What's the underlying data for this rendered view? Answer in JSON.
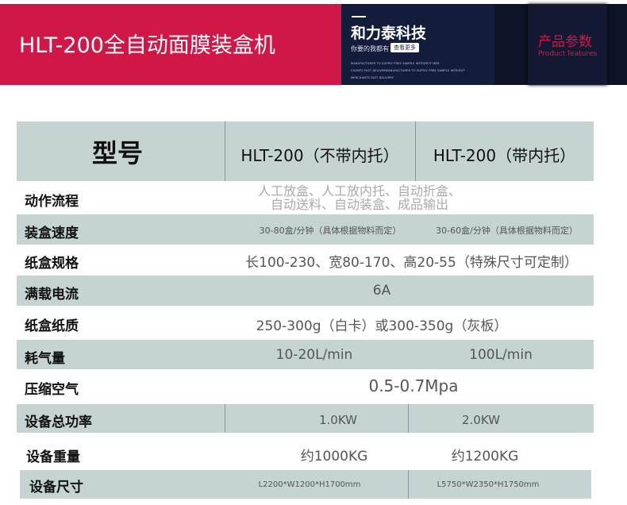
{
  "banner": {
    "title": "HLT-200全自动面膜装盒机",
    "brand": "和力泰科技",
    "slogan": "你要的我都有",
    "more_button": "查看更多",
    "tiny_lines": [
      "MANUFACTURER TO SUPPLY FREE SAMPLE INTEGRITY MER",
      "CHANTS FAST DELIVERMANUFACTURER TO SUPPLY FREE SAMPLE INTEGRIT",
      "MERCHANTS FAST DELIVERY"
    ],
    "section_cn": "产品参数",
    "section_en": "Product features",
    "accent": "#d01848"
  },
  "table": {
    "header": {
      "label": "型号",
      "col1": "HLT-200（不带内托）",
      "col2": "HLT-200（带内托）"
    },
    "rows": [
      {
        "label": "动作流程",
        "value_line1": "人工放盒、人工放内托、自动折盒、",
        "value_line2": "自动送料、自动装盒、成品输出"
      },
      {
        "label": "装盒速度",
        "col1": "30-80盒/分钟（具体根据物料而定）",
        "col2": "30-60盒/分钟（具体根据物料而定）"
      },
      {
        "label": "纸盒规格",
        "value": "长100-230、宽80-170、高20-55（特殊尺寸可定制）"
      },
      {
        "label": "满载电流",
        "value": "6A"
      },
      {
        "label": "纸盒纸质",
        "value": "250-300g（白卡）或300-350g（灰板）"
      },
      {
        "label": "耗气量",
        "col1": "10-20L/min",
        "col2": "100L/min"
      },
      {
        "label": "压缩空气",
        "value": "0.5-0.7Mpa"
      },
      {
        "label": "设备总功率",
        "col1": "1.0KW",
        "col2": "2.0KW"
      },
      {
        "label": "设备重量",
        "col1": "约1000KG",
        "col2": "约1200KG"
      },
      {
        "label": "设备尺寸",
        "col1": "L2200*W1200*H1700mm",
        "col2": "L5750*W2350*H1750mm"
      }
    ]
  }
}
